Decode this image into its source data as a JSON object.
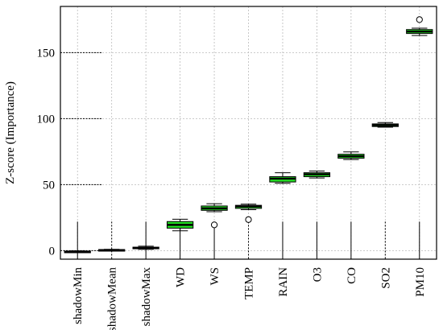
{
  "chart_data": {
    "type": "boxplot",
    "title": "",
    "xlabel": "",
    "ylabel": "Z-score (Importance)",
    "ylim": [
      -6.5,
      185
    ],
    "yticks": [
      0,
      50,
      100,
      150
    ],
    "grid": true,
    "colors": {
      "box_fill": "#22dd22",
      "grid": "#bbbbbb",
      "axis": "#000000",
      "shadow_fill": "#22dd22"
    },
    "categories": [
      "shadowMin",
      "shadowMean",
      "shadowMax",
      "WD",
      "WS",
      "TEMP",
      "RAIN",
      "O3",
      "CO",
      "SO2",
      "PM10"
    ],
    "boxes": [
      {
        "name": "shadowMin",
        "min": -1.5,
        "q1": -1.2,
        "median": -0.8,
        "q3": -0.4,
        "max": -0.2,
        "outliers": []
      },
      {
        "name": "shadowMean",
        "min": -0.2,
        "q1": 0.1,
        "median": 0.4,
        "q3": 0.8,
        "max": 1.0,
        "outliers": []
      },
      {
        "name": "shadowMax",
        "min": 1.0,
        "q1": 1.4,
        "median": 2.0,
        "q3": 2.6,
        "max": 3.3,
        "outliers": []
      },
      {
        "name": "WD",
        "min": 15.0,
        "q1": 17.0,
        "median": 19.5,
        "q3": 22.0,
        "max": 23.8,
        "outliers": []
      },
      {
        "name": "WS",
        "min": 29.5,
        "q1": 30.5,
        "median": 32.0,
        "q3": 33.8,
        "max": 35.5,
        "outliers": [
          19.5
        ]
      },
      {
        "name": "TEMP",
        "min": 31.0,
        "q1": 32.0,
        "median": 33.5,
        "q3": 34.3,
        "max": 35.2,
        "outliers": [
          23.5
        ]
      },
      {
        "name": "RAIN",
        "min": 51.0,
        "q1": 52.0,
        "median": 54.5,
        "q3": 56.0,
        "max": 59.0,
        "outliers": []
      },
      {
        "name": "O3",
        "min": 55.0,
        "q1": 56.0,
        "median": 57.8,
        "q3": 59.0,
        "max": 60.3,
        "outliers": []
      },
      {
        "name": "CO",
        "min": 69.0,
        "q1": 70.0,
        "median": 71.5,
        "q3": 73.0,
        "max": 74.8,
        "outliers": []
      },
      {
        "name": "SO2",
        "min": 93.5,
        "q1": 94.0,
        "median": 95.0,
        "q3": 96.0,
        "max": 97.0,
        "outliers": []
      },
      {
        "name": "PM10",
        "min": 163.0,
        "q1": 164.5,
        "median": 166.0,
        "q3": 167.5,
        "max": 168.5,
        "outliers": [
          175.0
        ]
      }
    ]
  }
}
